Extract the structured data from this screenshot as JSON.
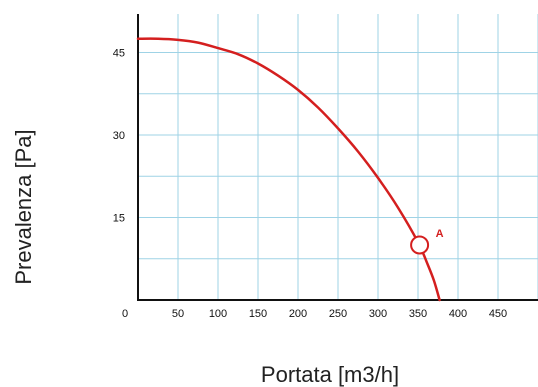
{
  "chart_data": {
    "type": "line",
    "xlabel": "Portata [m3/h]",
    "ylabel": "Prevalenza [Pa]",
    "xlim": [
      0,
      500
    ],
    "ylim": [
      0,
      52
    ],
    "x_ticks": [
      0,
      50,
      100,
      150,
      200,
      250,
      300,
      350,
      400,
      450
    ],
    "y_ticks": [
      15,
      30,
      45
    ],
    "grid_x_step": 50,
    "grid_y_step": 7.5,
    "grid": true,
    "series": [
      {
        "color": "#d41f1f",
        "points": [
          [
            0,
            47.5
          ],
          [
            25,
            47.5
          ],
          [
            50,
            47.3
          ],
          [
            75,
            46.8
          ],
          [
            100,
            45.8
          ],
          [
            125,
            44.7
          ],
          [
            150,
            43.0
          ],
          [
            175,
            40.8
          ],
          [
            200,
            38.2
          ],
          [
            225,
            35.0
          ],
          [
            250,
            31.2
          ],
          [
            275,
            27.0
          ],
          [
            300,
            22.2
          ],
          [
            325,
            16.8
          ],
          [
            350,
            10.5
          ],
          [
            362,
            6.5
          ],
          [
            370,
            3.5
          ],
          [
            377,
            0
          ]
        ]
      }
    ],
    "annotations": [
      {
        "label": "A",
        "x": 352,
        "y": 10,
        "color": "#d41f1f"
      }
    ]
  }
}
